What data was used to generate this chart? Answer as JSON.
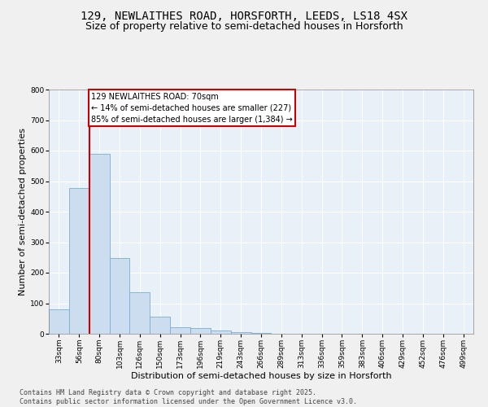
{
  "title_line1": "129, NEWLAITHES ROAD, HORSFORTH, LEEDS, LS18 4SX",
  "title_line2": "Size of property relative to semi-detached houses in Horsforth",
  "xlabel": "Distribution of semi-detached houses by size in Horsforth",
  "ylabel": "Number of semi-detached properties",
  "bar_values": [
    80,
    478,
    590,
    248,
    135,
    55,
    22,
    18,
    10,
    5,
    3,
    1,
    1,
    0,
    0,
    0,
    0,
    0,
    0,
    0,
    0
  ],
  "categories": [
    "33sqm",
    "56sqm",
    "80sqm",
    "103sqm",
    "126sqm",
    "150sqm",
    "173sqm",
    "196sqm",
    "219sqm",
    "243sqm",
    "266sqm",
    "289sqm",
    "313sqm",
    "336sqm",
    "359sqm",
    "383sqm",
    "406sqm",
    "429sqm",
    "452sqm",
    "476sqm",
    "499sqm"
  ],
  "bar_color": "#ccddf0",
  "bar_edge_color": "#7aadd4",
  "vline_x": 1.5,
  "vline_color": "#cc0000",
  "annotation_text": "129 NEWLAITHES ROAD: 70sqm\n← 14% of semi-detached houses are smaller (227)\n85% of semi-detached houses are larger (1,384) →",
  "annotation_box_facecolor": "#ffffff",
  "annotation_box_edgecolor": "#cc0000",
  "ylim_max": 800,
  "yticks": [
    0,
    100,
    200,
    300,
    400,
    500,
    600,
    700,
    800
  ],
  "plot_bg": "#e8f0f8",
  "fig_bg": "#f0f0f0",
  "grid_color": "#ffffff",
  "footer_text": "Contains HM Land Registry data © Crown copyright and database right 2025.\nContains public sector information licensed under the Open Government Licence v3.0.",
  "title_fontsize": 10,
  "subtitle_fontsize": 9,
  "ylabel_fontsize": 8,
  "xlabel_fontsize": 8,
  "tick_fontsize": 6.5,
  "annot_fontsize": 7,
  "footer_fontsize": 6
}
